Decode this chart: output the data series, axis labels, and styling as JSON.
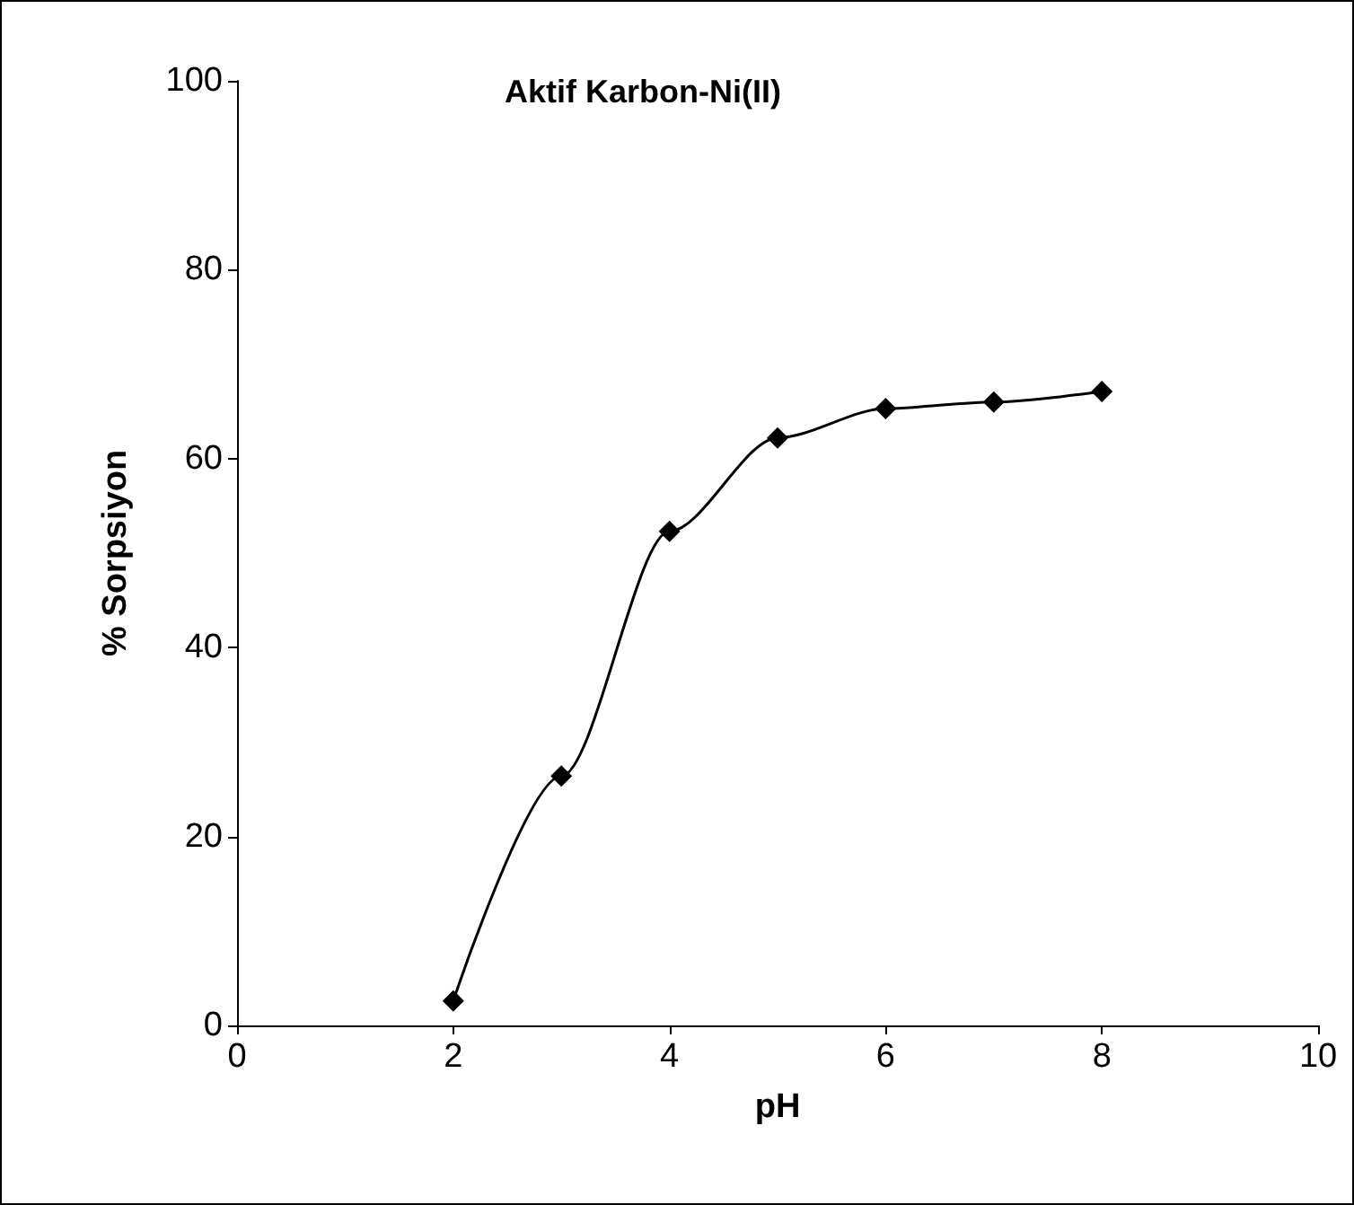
{
  "chart_data": {
    "type": "line",
    "title": "Aktif Karbon-Ni(II)",
    "xlabel": "pH",
    "ylabel": "% Sorpsiyon",
    "x": [
      2,
      3,
      4,
      5,
      6,
      7,
      8
    ],
    "series": [
      {
        "color": "#000000",
        "values": [
          2.6,
          26.4,
          52.3,
          62.2,
          65.3,
          66.0,
          67.1
        ]
      }
    ],
    "xlim": [
      0,
      10
    ],
    "xticks": [
      0,
      2,
      4,
      6,
      8,
      10
    ],
    "ylim": [
      0,
      100
    ],
    "yticks": [
      0,
      20,
      40,
      60,
      80,
      100
    ],
    "grid": false,
    "marker": "diamond",
    "line_style": "solid"
  }
}
